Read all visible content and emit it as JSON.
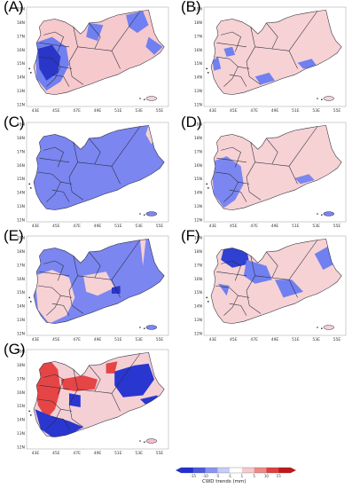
{
  "panels": [
    {
      "id": "A",
      "label": "(A)",
      "bg": "#f6c9cc",
      "blob": "#7080f0",
      "dark": "#2a36c8",
      "mix": "a"
    },
    {
      "id": "B",
      "label": "(B)",
      "bg": "#f6d2d4",
      "blob": "#7080f0",
      "dark": "#7080f0",
      "mix": "b"
    },
    {
      "id": "C",
      "label": "(C)",
      "bg": "#7b86f0",
      "blob": "#f6d2d4",
      "dark": "#7b86f0",
      "mix": "c"
    },
    {
      "id": "D",
      "label": "(D)",
      "bg": "#f6d2d4",
      "blob": "#7b86f0",
      "dark": "#7b86f0",
      "mix": "d"
    },
    {
      "id": "E",
      "label": "(E)",
      "bg": "#7b86f0",
      "blob": "#f6d2d4",
      "dark": "#2a36c8",
      "mix": "e"
    },
    {
      "id": "F",
      "label": "(F)",
      "bg": "#f6d2d4",
      "blob": "#7080f0",
      "dark": "#3040d0",
      "mix": "f"
    },
    {
      "id": "G",
      "label": "(G)",
      "bg": "#f4d0d4",
      "blob": "#e64545",
      "dark": "#2a36d0",
      "mix": "g"
    }
  ],
  "lat_ticks": [
    "19N",
    "18N",
    "17N",
    "16N",
    "15N",
    "14N",
    "13N",
    "12N"
  ],
  "lon_ticks": [
    "43E",
    "45E",
    "47E",
    "49E",
    "51E",
    "53E",
    "55E"
  ],
  "colorbar": {
    "title": "CWD trends (mm)",
    "ticks": [
      "-15",
      "-10",
      "-5",
      "-1",
      "1",
      "5",
      "10",
      "15"
    ],
    "colors": [
      "#1f2fd0",
      "#4a5ae0",
      "#8a94f0",
      "#c7cdf8",
      "#ffffff",
      "#f6c9cc",
      "#ee8a8a",
      "#e04040",
      "#c01818"
    ]
  }
}
